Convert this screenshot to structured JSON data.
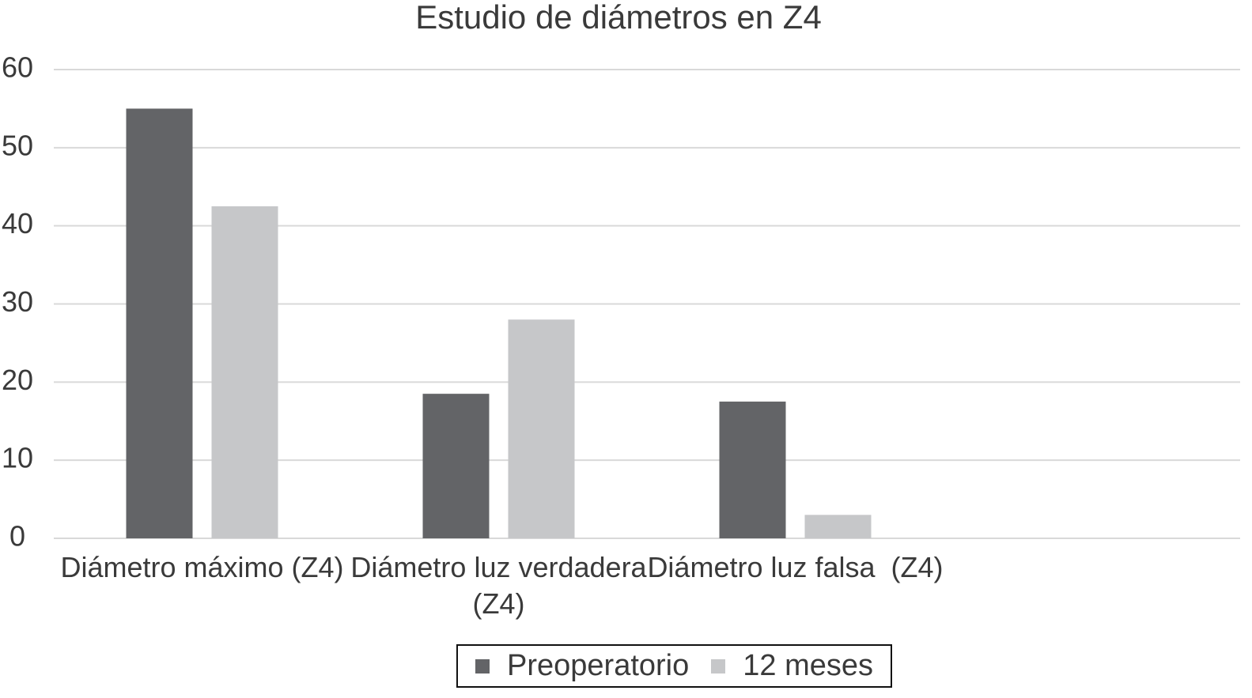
{
  "chart_data": {
    "type": "bar",
    "title": "Estudio de diámetros en Z4",
    "categories": [
      "Diámetro máximo (Z4)",
      "Diámetro luz verdadera (Z4)",
      "Diámetro luz falsa  (Z4)",
      null
    ],
    "series": [
      {
        "name": "Preoperatorio",
        "color": "#636467",
        "values": [
          55,
          18.5,
          17.5,
          null
        ]
      },
      {
        "name": "12 meses",
        "color": "#c6c7c9",
        "values": [
          42.5,
          28,
          3,
          null
        ]
      }
    ],
    "ylim": [
      0,
      60
    ],
    "yticks": [
      0,
      10,
      20,
      30,
      40,
      50,
      60
    ],
    "grid": true,
    "legend": "bottom"
  }
}
